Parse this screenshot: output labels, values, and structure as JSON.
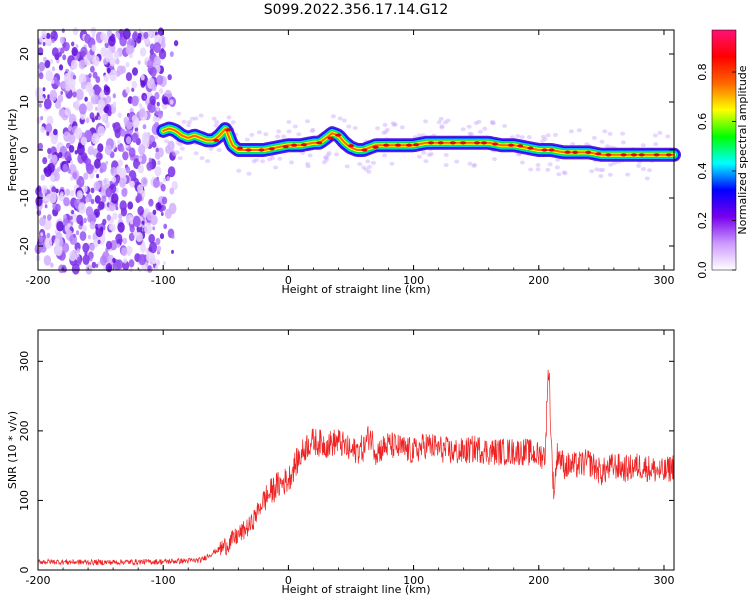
{
  "title": "S099.2022.356.17.14.G12",
  "chart_data": [
    {
      "type": "heatmap",
      "xlabel": "Height of straight line (km)",
      "ylabel": "Frequency (Hz)",
      "xlim": [
        -200,
        308
      ],
      "ylim": [
        -25,
        25
      ],
      "xticks": [
        "-200",
        "-100",
        "0",
        "100",
        "200",
        "300"
      ],
      "yticks": [
        "-20",
        "-10",
        "0",
        "10",
        "20"
      ],
      "colorbar": {
        "label": "Normalized spectral amplitude",
        "range": [
          0,
          0.97
        ],
        "ticks": [
          "0.0",
          "0.2",
          "0.4",
          "0.6",
          "0.8"
        ],
        "colors": [
          "#ffffff",
          "#cc99ff",
          "#7700ee",
          "#0000ff",
          "#00ffff",
          "#00ff00",
          "#ffff00",
          "#ff6600",
          "#ff0000",
          "#ff1177"
        ]
      },
      "noise_region_x": [
        -200,
        -100
      ],
      "ridge": {
        "x": [
          -100,
          -95,
          -90,
          -85,
          -80,
          -75,
          -70,
          -65,
          -60,
          -55,
          -50,
          -45,
          -40,
          -35,
          -30,
          -25,
          -20,
          -10,
          0,
          10,
          20,
          25,
          30,
          35,
          40,
          45,
          50,
          55,
          60,
          65,
          70,
          80,
          90,
          100,
          110,
          120,
          130,
          140,
          150,
          160,
          170,
          180,
          190,
          200,
          210,
          220,
          230,
          240,
          250,
          260,
          270,
          280,
          290,
          300,
          308
        ],
        "freq_hz": [
          4,
          4.5,
          4,
          3,
          2.5,
          3,
          2.5,
          2,
          2,
          3,
          4.5,
          1,
          0,
          0,
          0,
          0,
          0,
          0.5,
          1,
          1,
          1.5,
          1.5,
          2.5,
          3.5,
          3,
          1.5,
          0.5,
          0,
          0,
          0.5,
          1,
          1,
          1,
          1,
          1.5,
          1.5,
          1.5,
          1.5,
          1.5,
          1.5,
          1,
          1,
          0.5,
          0,
          0,
          -0.5,
          -0.5,
          -0.5,
          -1,
          -1,
          -1,
          -1,
          -1,
          -1,
          -1
        ]
      }
    },
    {
      "type": "line",
      "xlabel": "Height of straight line (km)",
      "ylabel": "SNR (10 * v/v)",
      "xlim": [
        -200,
        308
      ],
      "ylim": [
        0,
        345
      ],
      "xticks": [
        "-200",
        "-100",
        "0",
        "100",
        "200",
        "300"
      ],
      "yticks": [
        "0",
        "100",
        "200",
        "300"
      ],
      "series": [
        {
          "color": "#ee2222",
          "x": [
            -200,
            -150,
            -100,
            -70,
            -60,
            -50,
            -40,
            -30,
            -20,
            -10,
            0,
            5,
            10,
            15,
            20,
            30,
            40,
            50,
            60,
            65,
            70,
            80,
            90,
            100,
            110,
            120,
            130,
            140,
            150,
            160,
            170,
            180,
            190,
            200,
            205,
            208,
            210,
            212,
            215,
            220,
            230,
            240,
            250,
            260,
            270,
            280,
            290,
            300,
            308
          ],
          "y": [
            12,
            11,
            12,
            14,
            25,
            35,
            50,
            65,
            100,
            120,
            130,
            150,
            165,
            180,
            185,
            180,
            185,
            170,
            175,
            195,
            170,
            180,
            175,
            170,
            180,
            175,
            170,
            170,
            175,
            170,
            170,
            170,
            170,
            165,
            165,
            300,
            180,
            110,
            170,
            150,
            150,
            155,
            140,
            150,
            145,
            150,
            145,
            140,
            150
          ]
        }
      ]
    }
  ]
}
